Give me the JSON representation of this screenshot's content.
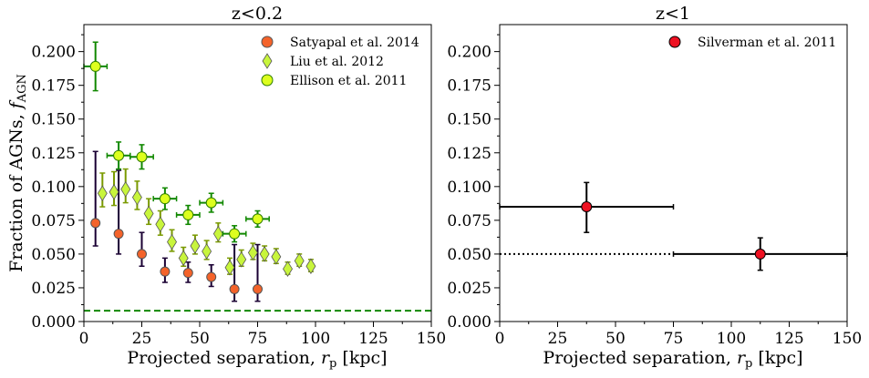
{
  "chart_data": [
    {
      "type": "scatter",
      "title": "z<0.2",
      "xlabel": "Projected separation, r_p [kpc]",
      "xlabel_main": "Projected separation, ",
      "xlabel_var": "r",
      "xlabel_sub": "p",
      "xlabel_unit": " [kpc]",
      "ylabel": "Fraction of AGNs, f_AGN",
      "ylabel_main": "Fraction of AGNs, ",
      "ylabel_var": "f",
      "ylabel_sub": "AGN",
      "xlim": [
        0,
        150
      ],
      "ylim": [
        0,
        0.22
      ],
      "xticks": [
        "0",
        "25",
        "50",
        "75",
        "100",
        "125",
        "150"
      ],
      "yticks": [
        "0.000",
        "0.025",
        "0.050",
        "0.075",
        "0.100",
        "0.125",
        "0.150",
        "0.175",
        "0.200"
      ],
      "grid": false,
      "legend_position": "top-right",
      "series": [
        {
          "name": "Satyapal et al. 2014",
          "marker": "circle",
          "color": "#f4632a",
          "edge": "#555555",
          "errcolor": "#1a0033",
          "points": [
            {
              "x": 5,
              "y": 0.073,
              "yerr_lo": 0.017,
              "yerr_hi": 0.053
            },
            {
              "x": 15,
              "y": 0.065,
              "yerr_lo": 0.015,
              "yerr_hi": 0.047
            },
            {
              "x": 25,
              "y": 0.05,
              "yerr_lo": 0.009,
              "yerr_hi": 0.016
            },
            {
              "x": 35,
              "y": 0.037,
              "yerr_lo": 0.008,
              "yerr_hi": 0.01
            },
            {
              "x": 45,
              "y": 0.036,
              "yerr_lo": 0.007,
              "yerr_hi": 0.008
            },
            {
              "x": 55,
              "y": 0.033,
              "yerr_lo": 0.007,
              "yerr_hi": 0.009
            },
            {
              "x": 65,
              "y": 0.024,
              "yerr_lo": 0.009,
              "yerr_hi": 0.033
            },
            {
              "x": 75,
              "y": 0.024,
              "yerr_lo": 0.009,
              "yerr_hi": 0.033
            }
          ]
        },
        {
          "name": "Liu et al. 2012",
          "marker": "diamond",
          "color": "#c8f53c",
          "edge": "#555555",
          "errcolor": "#7a9a00",
          "points": [
            {
              "x": 8,
              "y": 0.095,
              "yerr_lo": 0.01,
              "yerr_hi": 0.015
            },
            {
              "x": 13,
              "y": 0.096,
              "yerr_lo": 0.01,
              "yerr_hi": 0.015
            },
            {
              "x": 18,
              "y": 0.098,
              "yerr_lo": 0.01,
              "yerr_hi": 0.015
            },
            {
              "x": 23,
              "y": 0.092,
              "yerr_lo": 0.009,
              "yerr_hi": 0.012
            },
            {
              "x": 28,
              "y": 0.08,
              "yerr_lo": 0.008,
              "yerr_hi": 0.011
            },
            {
              "x": 33,
              "y": 0.072,
              "yerr_lo": 0.008,
              "yerr_hi": 0.01
            },
            {
              "x": 38,
              "y": 0.059,
              "yerr_lo": 0.007,
              "yerr_hi": 0.009
            },
            {
              "x": 43,
              "y": 0.047,
              "yerr_lo": 0.006,
              "yerr_hi": 0.008
            },
            {
              "x": 48,
              "y": 0.056,
              "yerr_lo": 0.006,
              "yerr_hi": 0.008
            },
            {
              "x": 53,
              "y": 0.052,
              "yerr_lo": 0.006,
              "yerr_hi": 0.008
            },
            {
              "x": 58,
              "y": 0.065,
              "yerr_lo": 0.006,
              "yerr_hi": 0.008
            },
            {
              "x": 63,
              "y": 0.04,
              "yerr_lo": 0.005,
              "yerr_hi": 0.007
            },
            {
              "x": 68,
              "y": 0.046,
              "yerr_lo": 0.005,
              "yerr_hi": 0.007
            },
            {
              "x": 73,
              "y": 0.051,
              "yerr_lo": 0.005,
              "yerr_hi": 0.007
            },
            {
              "x": 78,
              "y": 0.05,
              "yerr_lo": 0.005,
              "yerr_hi": 0.006
            },
            {
              "x": 83,
              "y": 0.048,
              "yerr_lo": 0.005,
              "yerr_hi": 0.006
            },
            {
              "x": 88,
              "y": 0.039,
              "yerr_lo": 0.004,
              "yerr_hi": 0.005
            },
            {
              "x": 93,
              "y": 0.045,
              "yerr_lo": 0.004,
              "yerr_hi": 0.005
            },
            {
              "x": 98,
              "y": 0.041,
              "yerr_lo": 0.004,
              "yerr_hi": 0.005
            }
          ]
        },
        {
          "name": "Ellison et al. 2011",
          "marker": "circle",
          "color": "#ddff1e",
          "edge": "#2e7d00",
          "errcolor": "#118800",
          "points": [
            {
              "x": 5,
              "y": 0.189,
              "xerr": 5,
              "yerr_lo": 0.018,
              "yerr_hi": 0.018
            },
            {
              "x": 15,
              "y": 0.123,
              "xerr": 5,
              "yerr_lo": 0.01,
              "yerr_hi": 0.01
            },
            {
              "x": 25,
              "y": 0.122,
              "xerr": 5,
              "yerr_lo": 0.009,
              "yerr_hi": 0.009
            },
            {
              "x": 35,
              "y": 0.091,
              "xerr": 5,
              "yerr_lo": 0.008,
              "yerr_hi": 0.008
            },
            {
              "x": 45,
              "y": 0.079,
              "xerr": 5,
              "yerr_lo": 0.007,
              "yerr_hi": 0.007
            },
            {
              "x": 55,
              "y": 0.088,
              "xerr": 5,
              "yerr_lo": 0.007,
              "yerr_hi": 0.007
            },
            {
              "x": 65,
              "y": 0.065,
              "xerr": 5,
              "yerr_lo": 0.006,
              "yerr_hi": 0.006
            },
            {
              "x": 75,
              "y": 0.076,
              "xerr": 5,
              "yerr_lo": 0.006,
              "yerr_hi": 0.006
            }
          ]
        }
      ],
      "reference_line": {
        "y": 0.008,
        "style": "dashed",
        "color": "#118800"
      }
    },
    {
      "type": "scatter",
      "title": "z<1",
      "xlabel": "Projected separation, r_p [kpc]",
      "xlabel_main": "Projected separation, ",
      "xlabel_var": "r",
      "xlabel_sub": "p",
      "xlabel_unit": " [kpc]",
      "xlim": [
        0,
        150
      ],
      "ylim": [
        0,
        0.22
      ],
      "xticks": [
        "0",
        "25",
        "50",
        "75",
        "100",
        "125",
        "150"
      ],
      "yticks": [
        "0.000",
        "0.025",
        "0.050",
        "0.075",
        "0.100",
        "0.125",
        "0.150",
        "0.175",
        "0.200"
      ],
      "grid": false,
      "legend_position": "top-right",
      "series": [
        {
          "name": "Silverman et al. 2011",
          "marker": "circle",
          "color": "#ee1122",
          "edge": "#000000",
          "errcolor": "#000000",
          "points": [
            {
              "x": 37.5,
              "y": 0.085,
              "xerr": 37.5,
              "yerr_lo": 0.019,
              "yerr_hi": 0.018
            },
            {
              "x": 112.5,
              "y": 0.05,
              "xerr": 37.5,
              "yerr_lo": 0.012,
              "yerr_hi": 0.012
            }
          ]
        }
      ],
      "reference_line": {
        "y": 0.05,
        "style": "dotted",
        "color": "#000000",
        "x_range": [
          0,
          75
        ]
      }
    }
  ]
}
